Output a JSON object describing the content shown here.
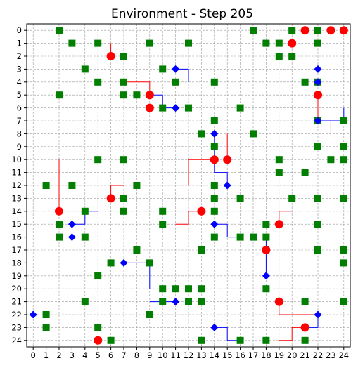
{
  "chart_data": {
    "type": "scatter",
    "title": "Environment - Step 205",
    "xlabel": "",
    "ylabel": "",
    "xlim": [
      -0.5,
      24.5
    ],
    "ylim": [
      24.5,
      -0.5
    ],
    "y_inverted": true,
    "grid": true,
    "grid_style": "dashed",
    "xticks": [
      0,
      1,
      2,
      3,
      4,
      5,
      6,
      7,
      8,
      9,
      10,
      11,
      12,
      13,
      14,
      15,
      16,
      17,
      18,
      19,
      20,
      21,
      22,
      23,
      24
    ],
    "yticks": [
      0,
      1,
      2,
      3,
      4,
      5,
      6,
      7,
      8,
      9,
      10,
      11,
      12,
      13,
      14,
      15,
      16,
      17,
      18,
      19,
      20,
      21,
      22,
      23,
      24
    ],
    "colors": {
      "obstacle": "#007f00",
      "red_agent": "#ff0000",
      "blue_agent": "#0000ff",
      "red_trail": "#ff0000",
      "blue_trail": "#0000ff"
    },
    "series": [
      {
        "marker": "square",
        "color": "#007f00",
        "points": [
          [
            2,
            0
          ],
          [
            17,
            0
          ],
          [
            20,
            0
          ],
          [
            22,
            0
          ],
          [
            3,
            1
          ],
          [
            5,
            1
          ],
          [
            9,
            1
          ],
          [
            12,
            1
          ],
          [
            18,
            1
          ],
          [
            19,
            1
          ],
          [
            22,
            1
          ],
          [
            7,
            2
          ],
          [
            19,
            2
          ],
          [
            20,
            2
          ],
          [
            4,
            3
          ],
          [
            10,
            3
          ],
          [
            5,
            4
          ],
          [
            7,
            4
          ],
          [
            11,
            4
          ],
          [
            14,
            4
          ],
          [
            21,
            4
          ],
          [
            22,
            4
          ],
          [
            2,
            5
          ],
          [
            7,
            5
          ],
          [
            8,
            5
          ],
          [
            10,
            6
          ],
          [
            12,
            6
          ],
          [
            16,
            6
          ],
          [
            14,
            7
          ],
          [
            22,
            7
          ],
          [
            24,
            7
          ],
          [
            13,
            8
          ],
          [
            17,
            8
          ],
          [
            14,
            9
          ],
          [
            22,
            9
          ],
          [
            24,
            9
          ],
          [
            5,
            10
          ],
          [
            7,
            10
          ],
          [
            19,
            10
          ],
          [
            23,
            10
          ],
          [
            24,
            10
          ],
          [
            19,
            11
          ],
          [
            21,
            11
          ],
          [
            1,
            12
          ],
          [
            3,
            12
          ],
          [
            8,
            12
          ],
          [
            14,
            12
          ],
          [
            7,
            13
          ],
          [
            14,
            13
          ],
          [
            16,
            13
          ],
          [
            20,
            13
          ],
          [
            22,
            13
          ],
          [
            24,
            13
          ],
          [
            4,
            14
          ],
          [
            7,
            14
          ],
          [
            10,
            14
          ],
          [
            14,
            14
          ],
          [
            2,
            15
          ],
          [
            10,
            15
          ],
          [
            18,
            15
          ],
          [
            22,
            15
          ],
          [
            2,
            16
          ],
          [
            4,
            16
          ],
          [
            14,
            16
          ],
          [
            16,
            16
          ],
          [
            17,
            16
          ],
          [
            18,
            16
          ],
          [
            8,
            17
          ],
          [
            13,
            17
          ],
          [
            22,
            17
          ],
          [
            24,
            17
          ],
          [
            6,
            18
          ],
          [
            9,
            18
          ],
          [
            24,
            18
          ],
          [
            5,
            19
          ],
          [
            10,
            20
          ],
          [
            11,
            20
          ],
          [
            12,
            20
          ],
          [
            13,
            20
          ],
          [
            18,
            20
          ],
          [
            4,
            21
          ],
          [
            10,
            21
          ],
          [
            12,
            21
          ],
          [
            13,
            21
          ],
          [
            21,
            21
          ],
          [
            24,
            21
          ],
          [
            1,
            22
          ],
          [
            9,
            22
          ],
          [
            1,
            23
          ],
          [
            5,
            23
          ],
          [
            6,
            24
          ],
          [
            13,
            24
          ],
          [
            16,
            24
          ],
          [
            18,
            24
          ],
          [
            21,
            24
          ]
        ]
      },
      {
        "marker": "circle",
        "color": "#ff0000",
        "points": [
          [
            21,
            0
          ],
          [
            23,
            0
          ],
          [
            24,
            0
          ],
          [
            20,
            1
          ],
          [
            6,
            2
          ],
          [
            9,
            5
          ],
          [
            22,
            5
          ],
          [
            9,
            6
          ],
          [
            14,
            10
          ],
          [
            15,
            10
          ],
          [
            6,
            13
          ],
          [
            2,
            14
          ],
          [
            13,
            14
          ],
          [
            19,
            15
          ],
          [
            18,
            17
          ],
          [
            19,
            21
          ],
          [
            21,
            23
          ],
          [
            5,
            24
          ]
        ]
      },
      {
        "marker": "diamond",
        "color": "#0000ff",
        "points": [
          [
            11,
            3
          ],
          [
            22,
            3
          ],
          [
            22,
            4
          ],
          [
            11,
            6
          ],
          [
            22,
            7
          ],
          [
            14,
            8
          ],
          [
            15,
            12
          ],
          [
            3,
            15
          ],
          [
            14,
            15
          ],
          [
            3,
            16
          ],
          [
            7,
            18
          ],
          [
            18,
            19
          ],
          [
            11,
            21
          ],
          [
            0,
            22
          ],
          [
            22,
            22
          ],
          [
            14,
            23
          ]
        ]
      }
    ],
    "trails": [
      {
        "color": "#ff0000",
        "points": [
          [
            6,
            2
          ],
          [
            6,
            1
          ]
        ]
      },
      {
        "color": "#ff0000",
        "points": [
          [
            9,
            5
          ],
          [
            9,
            4
          ],
          [
            7,
            4
          ]
        ]
      },
      {
        "color": "#ff0000",
        "points": [
          [
            14,
            10
          ],
          [
            12,
            10
          ],
          [
            12,
            12
          ]
        ]
      },
      {
        "color": "#ff0000",
        "points": [
          [
            15,
            10
          ],
          [
            15,
            8
          ]
        ]
      },
      {
        "color": "#ff0000",
        "points": [
          [
            6,
            13
          ],
          [
            6,
            12
          ],
          [
            7,
            12
          ]
        ]
      },
      {
        "color": "#ff0000",
        "points": [
          [
            2,
            14
          ],
          [
            2,
            10
          ]
        ]
      },
      {
        "color": "#ff0000",
        "points": [
          [
            13,
            14
          ],
          [
            12,
            14
          ],
          [
            12,
            15
          ],
          [
            11,
            15
          ]
        ]
      },
      {
        "color": "#ff0000",
        "points": [
          [
            19,
            15
          ],
          [
            19,
            14
          ],
          [
            20,
            14
          ]
        ]
      },
      {
        "color": "#ff0000",
        "points": [
          [
            22,
            5
          ],
          [
            22,
            7
          ],
          [
            23,
            7
          ],
          [
            23,
            8
          ]
        ]
      },
      {
        "color": "#ff0000",
        "points": [
          [
            19,
            21
          ],
          [
            19,
            22
          ],
          [
            22,
            22
          ]
        ]
      },
      {
        "color": "#ff0000",
        "points": [
          [
            21,
            23
          ],
          [
            20,
            23
          ],
          [
            20,
            24
          ],
          [
            19,
            24
          ]
        ]
      },
      {
        "color": "#0000ff",
        "points": [
          [
            11,
            3
          ],
          [
            12,
            3
          ],
          [
            12,
            4
          ]
        ]
      },
      {
        "color": "#0000ff",
        "points": [
          [
            11,
            6
          ],
          [
            10,
            6
          ],
          [
            10,
            5
          ],
          [
            9,
            5
          ]
        ]
      },
      {
        "color": "#0000ff",
        "points": [
          [
            22,
            7
          ],
          [
            24,
            7
          ],
          [
            24,
            6
          ]
        ]
      },
      {
        "color": "#0000ff",
        "points": [
          [
            14,
            8
          ],
          [
            14,
            11
          ],
          [
            15,
            11
          ],
          [
            15,
            12
          ]
        ]
      },
      {
        "color": "#0000ff",
        "points": [
          [
            3,
            15
          ],
          [
            4,
            15
          ],
          [
            4,
            14
          ],
          [
            5,
            14
          ]
        ]
      },
      {
        "color": "#0000ff",
        "points": [
          [
            14,
            15
          ],
          [
            15,
            15
          ],
          [
            15,
            16
          ],
          [
            16,
            16
          ]
        ]
      },
      {
        "color": "#0000ff",
        "points": [
          [
            7,
            18
          ],
          [
            9,
            18
          ],
          [
            9,
            20
          ]
        ]
      },
      {
        "color": "#0000ff",
        "points": [
          [
            18,
            19
          ],
          [
            18,
            16
          ]
        ]
      },
      {
        "color": "#0000ff",
        "points": [
          [
            11,
            21
          ],
          [
            9,
            21
          ]
        ]
      },
      {
        "color": "#0000ff",
        "points": [
          [
            14,
            23
          ],
          [
            15,
            23
          ],
          [
            15,
            24
          ],
          [
            16,
            24
          ]
        ]
      },
      {
        "color": "#0000ff",
        "points": [
          [
            22,
            22
          ],
          [
            22,
            23
          ],
          [
            21,
            23
          ]
        ]
      }
    ]
  }
}
